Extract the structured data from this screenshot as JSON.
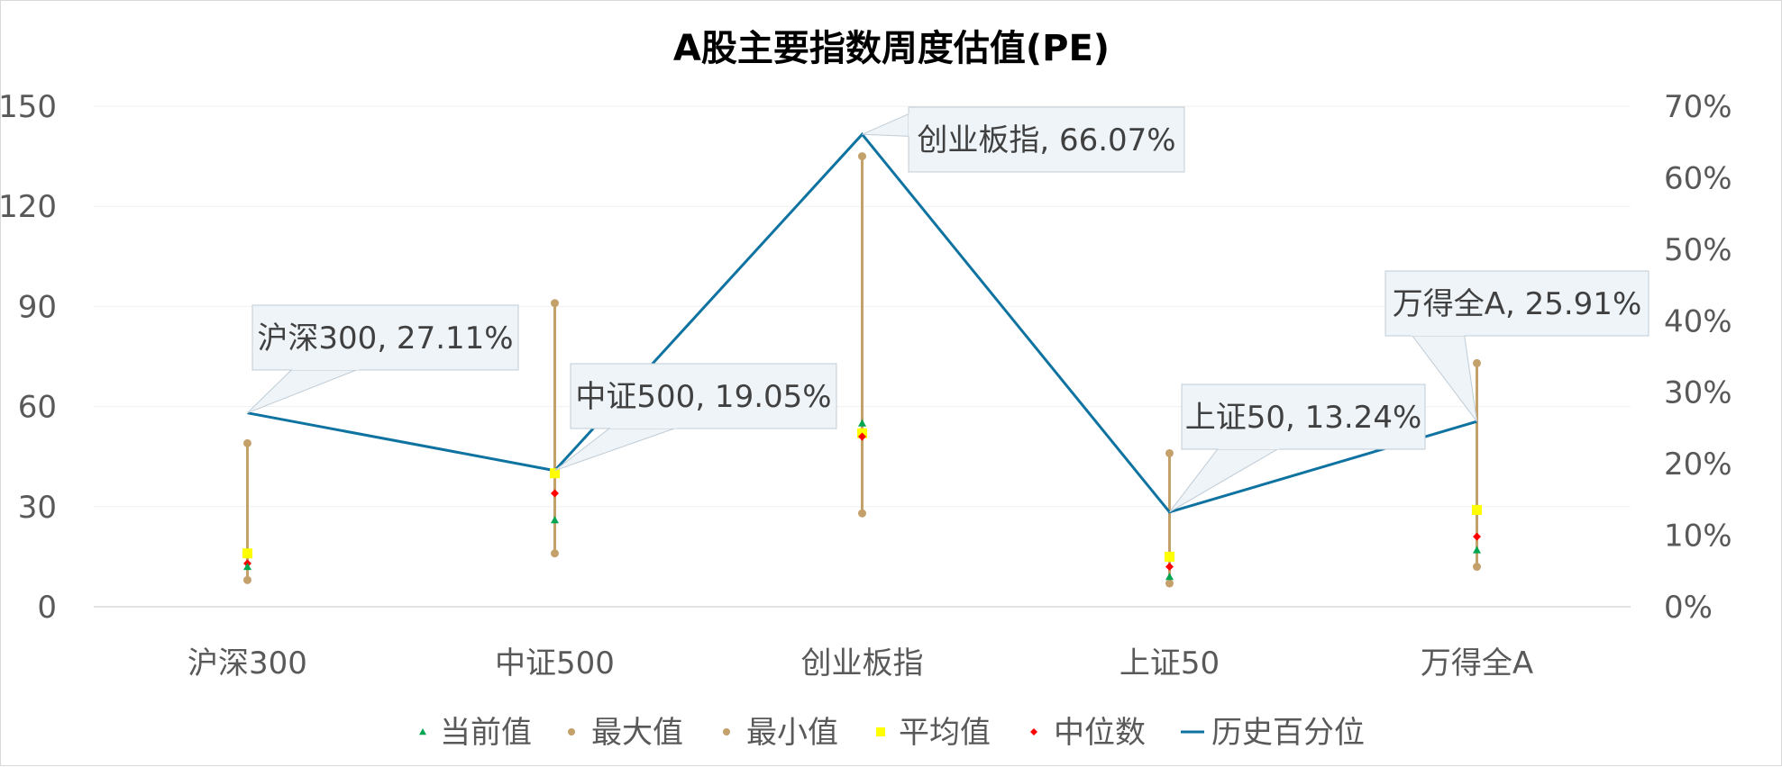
{
  "chart_data": {
    "type": "line",
    "title": "A股主要指数周度估值(PE)",
    "categories": [
      "沪深300",
      "中证500",
      "创业板指",
      "上证50",
      "万得全A"
    ],
    "y_left": {
      "ticks": [
        "0",
        "30",
        "60",
        "90",
        "120",
        "150"
      ],
      "ylim": [
        0,
        150
      ]
    },
    "y_right": {
      "ticks": [
        "0%",
        "10%",
        "20%",
        "30%",
        "40%",
        "50%",
        "60%",
        "70%"
      ],
      "ylim": [
        0,
        0.7
      ]
    },
    "grid": true,
    "legend_position": "bottom",
    "series": [
      {
        "name": "当前值",
        "axis": "left",
        "marker": "triangle",
        "color": "#00a651",
        "values": [
          12,
          26,
          55,
          9,
          17
        ]
      },
      {
        "name": "最大值",
        "axis": "left",
        "marker": "circle",
        "color": "#c4a16b",
        "values": [
          49,
          91,
          135,
          46,
          73
        ]
      },
      {
        "name": "最小值",
        "axis": "left",
        "marker": "circle",
        "color": "#c4a16b",
        "values": [
          8,
          16,
          28,
          7,
          12
        ]
      },
      {
        "name": "平均值",
        "axis": "left",
        "marker": "square",
        "color": "#ffff00",
        "values": [
          16,
          40,
          52,
          15,
          29
        ]
      },
      {
        "name": "中位数",
        "axis": "left",
        "marker": "diamond",
        "color": "#ff0000",
        "values": [
          13,
          34,
          51,
          12,
          21
        ]
      },
      {
        "name": "历史百分位",
        "axis": "right",
        "marker": "line",
        "color": "#0e73a0",
        "values": [
          0.2711,
          0.1905,
          0.6607,
          0.1324,
          0.2591
        ]
      }
    ],
    "range_line_color": "#c4a16b",
    "annotations": [
      {
        "text": "沪深300, 27.11%",
        "category": "沪深300"
      },
      {
        "text": "中证500, 19.05%",
        "category": "中证500"
      },
      {
        "text": "创业板指, 66.07%",
        "category": "创业板指"
      },
      {
        "text": "上证50, 13.24%",
        "category": "上证50"
      },
      {
        "text": "万得全A, 25.91%",
        "category": "万得全A"
      }
    ]
  }
}
